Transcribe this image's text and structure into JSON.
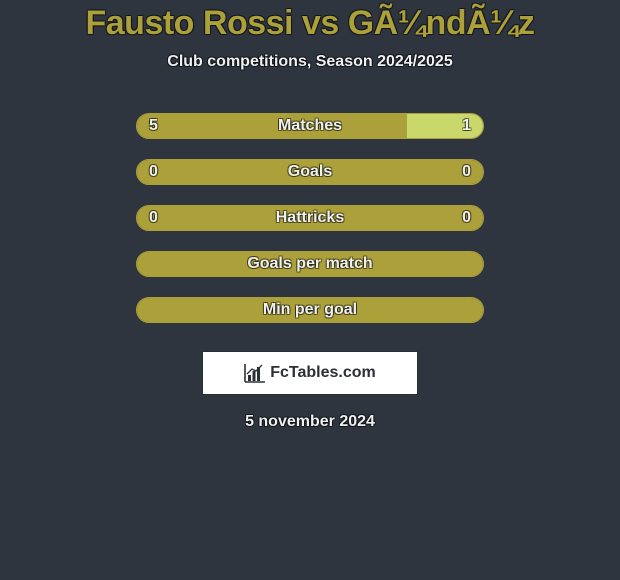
{
  "colors": {
    "background": "#2e353f",
    "title_text": "#aca03a",
    "subtitle_text": "#eef0f2",
    "label_text": "#eef0f2",
    "value_text": "#eef0f2",
    "ellipse_fill": "#ecedee",
    "bar_border": "#aca03a",
    "left_fill": "#aca03a",
    "right_fill": "#cad76a",
    "source_box_bg": "#ffffff",
    "source_box_border": "#2a2f36",
    "source_icon_fill": "#2c3035",
    "source_text": "#2c3035",
    "date_text": "#eef0f2"
  },
  "title": "Fausto Rossi vs GÃ¼ndÃ¼z",
  "subtitle": "Club competitions, Season 2024/2025",
  "rows": [
    {
      "label": "Matches",
      "left_value": "5",
      "right_value": "1",
      "left_pct": 78,
      "right_pct": 22,
      "show_values": true,
      "show_ellipses": true,
      "ellipse_size": "normal"
    },
    {
      "label": "Goals",
      "left_value": "0",
      "right_value": "0",
      "left_pct": 100,
      "right_pct": 0,
      "show_values": true,
      "show_ellipses": true,
      "ellipse_size": "small"
    },
    {
      "label": "Hattricks",
      "left_value": "0",
      "right_value": "0",
      "left_pct": 100,
      "right_pct": 0,
      "show_values": true,
      "show_ellipses": false
    },
    {
      "label": "Goals per match",
      "left_value": "",
      "right_value": "",
      "left_pct": 100,
      "right_pct": 0,
      "show_values": false,
      "show_ellipses": false
    },
    {
      "label": "Min per goal",
      "left_value": "",
      "right_value": "",
      "left_pct": 100,
      "right_pct": 0,
      "show_values": false,
      "show_ellipses": false
    }
  ],
  "source_label": "FcTables.com",
  "date": "5 november 2024"
}
